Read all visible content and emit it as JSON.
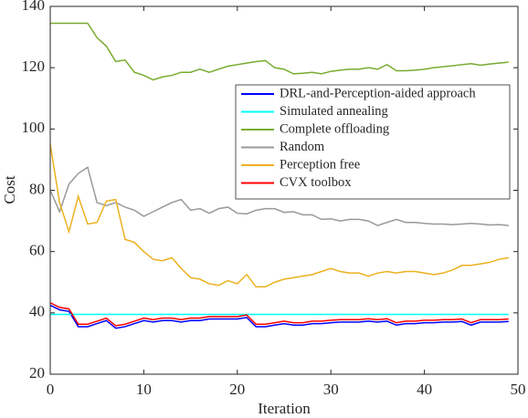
{
  "chart_data": {
    "type": "line",
    "x_label": "Iteration",
    "y_label": "Cost",
    "x": [
      0,
      1,
      2,
      3,
      4,
      5,
      6,
      7,
      8,
      9,
      10,
      11,
      12,
      13,
      14,
      15,
      16,
      17,
      18,
      19,
      20,
      21,
      22,
      23,
      24,
      25,
      26,
      27,
      28,
      29,
      30,
      31,
      32,
      33,
      34,
      35,
      36,
      37,
      38,
      39,
      40,
      41,
      42,
      43,
      44,
      45,
      46,
      47,
      48,
      49
    ],
    "xlim": [
      0,
      50
    ],
    "xticks": [
      0,
      10,
      20,
      30,
      40,
      50
    ],
    "ylim": [
      20,
      140
    ],
    "yticks": [
      20,
      40,
      60,
      80,
      100,
      120,
      140
    ],
    "legend": "upper right",
    "series": [
      {
        "name": "DRL-and-Perception-aided approach",
        "color": "#0000ff",
        "values": [
          42.5,
          41,
          40.5,
          35.5,
          35.5,
          36.5,
          37.5,
          35,
          35.5,
          36.5,
          37.5,
          37,
          37.5,
          37.5,
          37,
          37.5,
          37.5,
          38,
          38,
          38,
          38,
          38.5,
          35.5,
          35.5,
          36,
          36.5,
          36,
          36,
          36.5,
          36.5,
          36.8,
          37,
          37,
          37,
          37.3,
          37,
          37.3,
          36,
          36.5,
          36.5,
          36.8,
          36.8,
          37,
          37,
          37.2,
          36,
          37,
          37,
          37,
          37.2
        ]
      },
      {
        "name": "Simulated annealing",
        "color": "#00ffff",
        "values": [
          39.5,
          39.5,
          39.5,
          39.5,
          39.5,
          39.5,
          39.5,
          39.5,
          39.5,
          39.5,
          39.5,
          39.5,
          39.5,
          39.5,
          39.5,
          39.5,
          39.5,
          39.5,
          39.5,
          39.5,
          39.5,
          39.5,
          39.5,
          39.5,
          39.5,
          39.5,
          39.5,
          39.5,
          39.5,
          39.5,
          39.5,
          39.5,
          39.5,
          39.5,
          39.5,
          39.5,
          39.5,
          39.5,
          39.5,
          39.5,
          39.5,
          39.5,
          39.5,
          39.5,
          39.5,
          39.5,
          39.5,
          39.5,
          39.5,
          39.5
        ]
      },
      {
        "name": "Complete offloading",
        "color": "#77ac30",
        "values": [
          134.5,
          134.5,
          134.5,
          134.5,
          134.5,
          129.8,
          127,
          122,
          122.5,
          118.5,
          117.5,
          116,
          117,
          117.5,
          118.5,
          118.5,
          119.5,
          118.5,
          119.5,
          120.5,
          121,
          121.5,
          122,
          122.3,
          120,
          119.5,
          118,
          118.2,
          118.5,
          118,
          118.8,
          119.2,
          119.5,
          119.5,
          120,
          119.5,
          121,
          119,
          119,
          119.2,
          119.5,
          120,
          120.3,
          120.6,
          121,
          121.3,
          120.8,
          121.2,
          121.5,
          121.8
        ]
      },
      {
        "name": "Random",
        "color": "#999999",
        "values": [
          80,
          73,
          82,
          85.5,
          87.5,
          76,
          75,
          76,
          74.5,
          73.5,
          71.5,
          73,
          74.5,
          76,
          77,
          73.5,
          74,
          72.5,
          74,
          74.5,
          72.5,
          72.3,
          73.5,
          74,
          74,
          72.8,
          73,
          72,
          72,
          70.5,
          70.7,
          70,
          70.5,
          70.5,
          70,
          68.5,
          69.5,
          70.5,
          69.5,
          69.5,
          69.2,
          69,
          69,
          68.8,
          69,
          69.2,
          69,
          68.7,
          68.8,
          68.5
        ]
      },
      {
        "name": "Perception free",
        "color": "#edb120",
        "values": [
          95,
          76,
          66.5,
          78,
          69,
          69.5,
          76.5,
          77,
          64,
          63,
          60,
          57.5,
          57,
          58,
          54.5,
          51.5,
          51,
          49.5,
          49,
          50.5,
          49.5,
          52.5,
          48.5,
          48.5,
          50,
          51,
          51.5,
          52,
          52.5,
          53.5,
          54.5,
          53.5,
          53,
          53,
          52,
          53,
          53.5,
          53,
          53.5,
          53.5,
          53,
          52.5,
          53,
          54,
          55.5,
          55.5,
          56,
          56.5,
          57.5,
          58
        ]
      },
      {
        "name": "CVX toolbox",
        "color": "#ff0000",
        "values": [
          43.3,
          41.8,
          41.3,
          36.3,
          36.3,
          37.3,
          38.3,
          35.8,
          36.3,
          37.3,
          38.3,
          37.8,
          38.3,
          38.3,
          37.8,
          38.3,
          38.3,
          38.8,
          38.8,
          38.8,
          38.8,
          39.3,
          36.3,
          36.3,
          36.8,
          37.3,
          36.8,
          36.8,
          37.3,
          37.3,
          37.6,
          37.8,
          37.8,
          37.8,
          38.1,
          37.8,
          38.1,
          36.8,
          37.3,
          37.3,
          37.6,
          37.6,
          37.8,
          37.8,
          38,
          36.8,
          37.8,
          37.8,
          37.8,
          38
        ]
      }
    ]
  }
}
